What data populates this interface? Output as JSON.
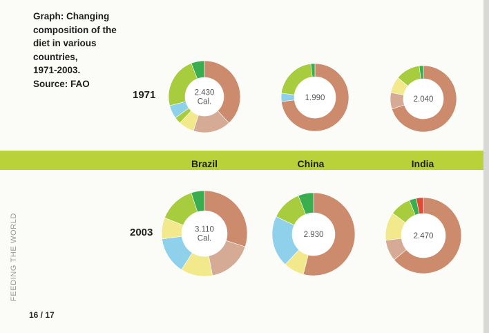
{
  "caption": {
    "lines": [
      "Graph: Changing",
      "composition of the",
      "diet in various",
      "countries,",
      "1971-2003.",
      "Source: FAO"
    ]
  },
  "years": [
    "1971",
    "2003"
  ],
  "countries": [
    "Brazil",
    "China",
    "India"
  ],
  "side_label": "FEEDING THE WORLD",
  "page_number": "16 / 17",
  "colors": {
    "band": "#b9d23a",
    "dark_green": "#3aad4e",
    "light_green": "#a7cc3e",
    "yellow": "#f1e98c",
    "blue": "#8fd0ea",
    "pink": "#d6ab96",
    "salmon": "#cc8b6c",
    "red": "#e04a35"
  },
  "chart_data": {
    "type": "pie",
    "donuts": [
      {
        "year": "1971",
        "country": "Brazil",
        "center": [
          "2.430",
          "Cal."
        ],
        "slices": [
          {
            "color": "salmon",
            "value": 38
          },
          {
            "color": "pink",
            "value": 17
          },
          {
            "color": "yellow",
            "value": 7
          },
          {
            "color": "light_green",
            "value": 3
          },
          {
            "color": "blue",
            "value": 6
          },
          {
            "color": "light_green",
            "value": 23
          },
          {
            "color": "dark_green",
            "value": 6
          }
        ]
      },
      {
        "year": "1971",
        "country": "China",
        "center": [
          "1.990"
        ],
        "slices": [
          {
            "color": "salmon",
            "value": 73
          },
          {
            "color": "blue",
            "value": 4
          },
          {
            "color": "light_green",
            "value": 21
          },
          {
            "color": "dark_green",
            "value": 2
          }
        ]
      },
      {
        "year": "1971",
        "country": "India",
        "center": [
          "2.040"
        ],
        "slices": [
          {
            "color": "salmon",
            "value": 70
          },
          {
            "color": "pink",
            "value": 8
          },
          {
            "color": "yellow",
            "value": 8
          },
          {
            "color": "light_green",
            "value": 12
          },
          {
            "color": "dark_green",
            "value": 2
          }
        ]
      },
      {
        "year": "2003",
        "country": "Brazil",
        "center": [
          "3.110",
          "Cal."
        ],
        "slices": [
          {
            "color": "salmon",
            "value": 30
          },
          {
            "color": "pink",
            "value": 17
          },
          {
            "color": "yellow",
            "value": 12
          },
          {
            "color": "blue",
            "value": 14
          },
          {
            "color": "yellow",
            "value": 8
          },
          {
            "color": "light_green",
            "value": 14
          },
          {
            "color": "dark_green",
            "value": 5
          }
        ]
      },
      {
        "year": "2003",
        "country": "China",
        "center": [
          "2.930"
        ],
        "slices": [
          {
            "color": "salmon",
            "value": 54
          },
          {
            "color": "yellow",
            "value": 8
          },
          {
            "color": "blue",
            "value": 20
          },
          {
            "color": "light_green",
            "value": 12
          },
          {
            "color": "dark_green",
            "value": 6
          }
        ]
      },
      {
        "year": "2003",
        "country": "India",
        "center": [
          "2.470"
        ],
        "slices": [
          {
            "color": "salmon",
            "value": 64
          },
          {
            "color": "pink",
            "value": 9
          },
          {
            "color": "yellow",
            "value": 12
          },
          {
            "color": "light_green",
            "value": 9
          },
          {
            "color": "dark_green",
            "value": 3
          },
          {
            "color": "red",
            "value": 3
          }
        ]
      }
    ]
  }
}
